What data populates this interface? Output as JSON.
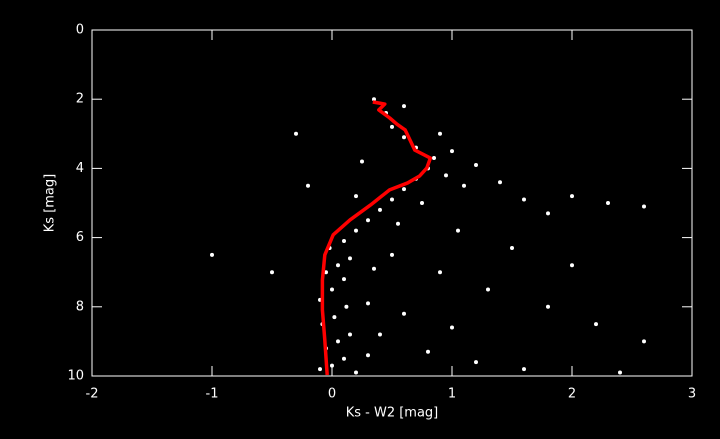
{
  "chart_data": {
    "type": "scatter",
    "xlabel": "Ks - W2 [mag]",
    "ylabel": "Ks [mag]",
    "xlim": [
      -2,
      3
    ],
    "ylim": [
      10,
      0
    ],
    "xticks": [
      -2,
      -1,
      0,
      1,
      2,
      3
    ],
    "yticks": [
      0,
      2,
      4,
      6,
      8,
      10
    ],
    "background": "#000000",
    "axis_color": "#ffffff",
    "series": [
      {
        "type": "scatter",
        "color": "#ffffff",
        "x": [
          -0.1,
          0.0,
          0.1,
          0.2,
          -0.05,
          0.05,
          0.15,
          -0.08,
          0.02,
          0.12,
          -0.1,
          0.0,
          0.1,
          -0.05,
          0.05,
          0.15,
          -0.02,
          0.1,
          0.2,
          0.3,
          0.4,
          0.5,
          0.6,
          0.7,
          0.8,
          0.85,
          0.7,
          0.6,
          0.5,
          0.45,
          0.35,
          0.6,
          0.9,
          1.0,
          1.2,
          1.1,
          1.4,
          1.6,
          1.8,
          2.0,
          2.3,
          2.6,
          0.5,
          0.9,
          1.3,
          1.8,
          2.2,
          2.6,
          0.4,
          0.8,
          1.2,
          1.6,
          2.4,
          0.3,
          0.6,
          1.0,
          -0.5,
          -1.0,
          -0.3,
          -0.2,
          0.25,
          0.2,
          0.3,
          0.35,
          0.55,
          0.75,
          1.05,
          1.5,
          2.0,
          0.95
        ],
        "values": [
          9.8,
          9.7,
          9.5,
          9.9,
          9.2,
          9.0,
          8.8,
          8.5,
          8.3,
          8.0,
          7.8,
          7.5,
          7.2,
          7.0,
          6.8,
          6.6,
          6.3,
          6.1,
          5.8,
          5.5,
          5.2,
          4.9,
          4.6,
          4.3,
          4.0,
          3.7,
          3.4,
          3.1,
          2.8,
          2.4,
          2.0,
          2.2,
          3.0,
          3.5,
          3.9,
          4.5,
          4.4,
          4.9,
          5.3,
          4.8,
          5.0,
          5.1,
          6.5,
          7.0,
          7.5,
          8.0,
          8.5,
          9.0,
          8.8,
          9.3,
          9.6,
          9.8,
          9.9,
          7.9,
          8.2,
          8.6,
          7.0,
          6.5,
          3.0,
          4.5,
          3.8,
          4.8,
          9.4,
          6.9,
          5.6,
          5.0,
          5.8,
          6.3,
          6.8,
          4.2
        ]
      },
      {
        "type": "line",
        "color": "#ff0000",
        "x": [
          0.34,
          0.44,
          0.39,
          0.48,
          0.54,
          0.61,
          0.65,
          0.69,
          0.82,
          0.79,
          0.73,
          0.63,
          0.48,
          0.32,
          0.15,
          0.01,
          -0.06,
          -0.08,
          -0.08,
          -0.06,
          -0.04
        ],
        "values": [
          2.08,
          2.14,
          2.31,
          2.54,
          2.72,
          2.89,
          3.18,
          3.47,
          3.7,
          3.99,
          4.22,
          4.42,
          4.62,
          5.06,
          5.49,
          5.92,
          6.5,
          7.23,
          8.09,
          8.96,
          9.97
        ]
      }
    ]
  }
}
